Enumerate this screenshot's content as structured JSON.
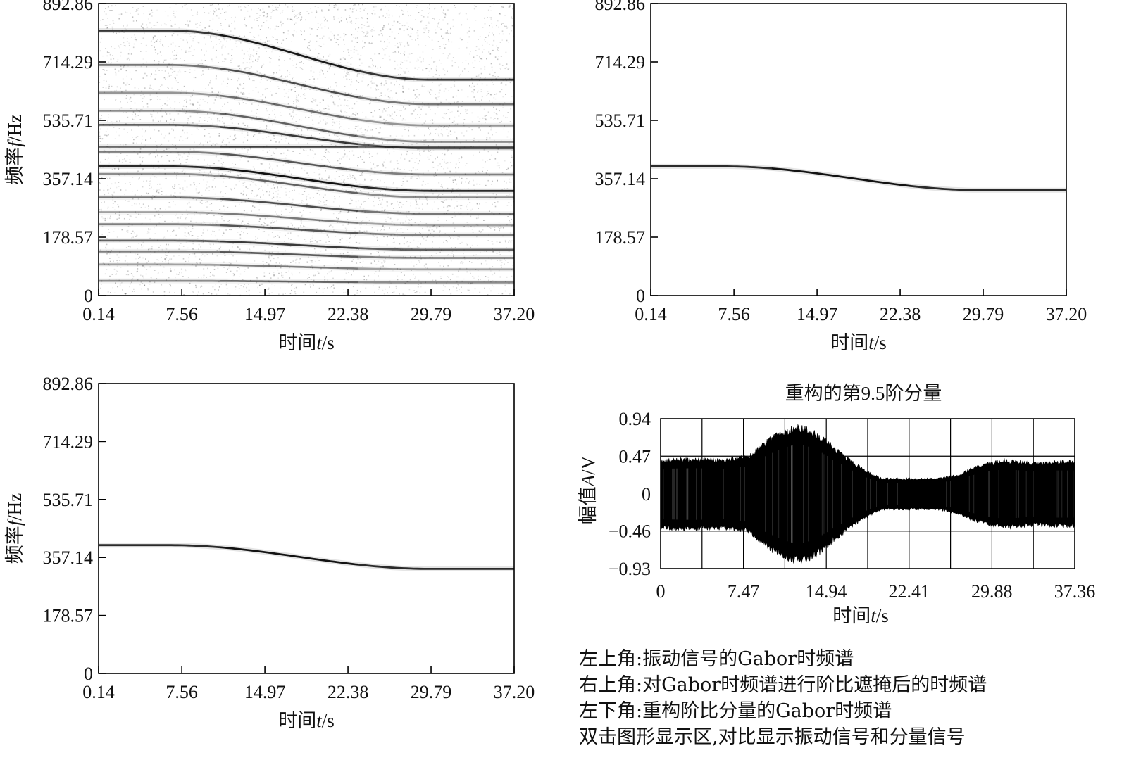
{
  "chart_data": [
    {
      "type": "heatmap",
      "xlabel": "时间t/s",
      "ylabel": "频率f/Hz",
      "xlim": [
        0.14,
        37.2
      ],
      "ylim": [
        0,
        892.86
      ],
      "xticks": [
        "0.14",
        "7.56",
        "14.97",
        "22.38",
        "29.79",
        "37.20"
      ],
      "yticks": [
        "0",
        "178.57",
        "357.14",
        "535.71",
        "714.29",
        "892.86"
      ],
      "grid": false,
      "colormap": "grayscale",
      "traces": [
        {
          "f_start": 810,
          "f_end": 660,
          "intensity": 0.9
        },
        {
          "f_start": 705,
          "f_end": 585,
          "intensity": 0.6
        },
        {
          "f_start": 620,
          "f_end": 520,
          "intensity": 0.45
        },
        {
          "f_start": 565,
          "f_end": 470,
          "intensity": 0.5
        },
        {
          "f_start": 522,
          "f_end": 450,
          "intensity": 0.7
        },
        {
          "f_start": 455,
          "f_end": 455,
          "intensity": 0.65
        },
        {
          "f_start": 440,
          "f_end": 370,
          "intensity": 0.55
        },
        {
          "f_start": 395,
          "f_end": 320,
          "intensity": 0.95
        },
        {
          "f_start": 372,
          "f_end": 300,
          "intensity": 0.5
        },
        {
          "f_start": 300,
          "f_end": 250,
          "intensity": 0.6
        },
        {
          "f_start": 255,
          "f_end": 215,
          "intensity": 0.4
        },
        {
          "f_start": 218,
          "f_end": 185,
          "intensity": 0.55
        },
        {
          "f_start": 168,
          "f_end": 140,
          "intensity": 0.7
        },
        {
          "f_start": 135,
          "f_end": 115,
          "intensity": 0.55
        },
        {
          "f_start": 95,
          "f_end": 80,
          "intensity": 0.4
        },
        {
          "f_start": 45,
          "f_end": 40,
          "intensity": 0.5
        }
      ]
    },
    {
      "type": "heatmap",
      "xlabel": "时间t/s",
      "ylabel": "频率f/Hz",
      "xlim": [
        0.14,
        37.2
      ],
      "ylim": [
        0,
        892.86
      ],
      "xticks": [
        "0.14",
        "7.56",
        "14.97",
        "22.38",
        "29.79",
        "37.20"
      ],
      "yticks": [
        "0",
        "178.57",
        "357.14",
        "535.71",
        "714.29",
        "892.86"
      ],
      "grid": false,
      "colormap": "grayscale",
      "traces": [
        {
          "f_start": 395,
          "f_end": 322,
          "intensity": 0.95
        }
      ]
    },
    {
      "type": "heatmap",
      "xlabel": "时间t/s",
      "ylabel": "频率f/Hz",
      "xlim": [
        0.14,
        37.2
      ],
      "ylim": [
        0,
        892.86
      ],
      "xticks": [
        "0.14",
        "7.56",
        "14.97",
        "22.38",
        "29.79",
        "37.20"
      ],
      "yticks": [
        "0",
        "178.57",
        "357.14",
        "535.71",
        "714.29",
        "892.86"
      ],
      "grid": false,
      "colormap": "grayscale",
      "traces": [
        {
          "f_start": 395,
          "f_end": 322,
          "intensity": 0.95
        }
      ]
    },
    {
      "type": "line",
      "title": "重构的第9.5阶分量",
      "xlabel": "时间t/s",
      "ylabel": "幅值A/V",
      "xlim": [
        0,
        37.36
      ],
      "ylim": [
        -0.93,
        0.94
      ],
      "xticks": [
        "0",
        "7.47",
        "14.94",
        "22.41",
        "29.88",
        "37.36"
      ],
      "yticks": [
        "0.94",
        "0.47",
        "0",
        "−0.46",
        "−0.93"
      ],
      "grid": true,
      "series": [
        {
          "envelope_t": [
            0,
            3,
            6,
            8,
            9.5,
            11,
            12.5,
            14,
            15.5,
            17,
            18.5,
            20,
            21,
            23,
            25,
            27,
            28,
            29.5,
            31,
            32.5,
            34,
            35.5,
            37.36
          ],
          "envelope_a": [
            0.45,
            0.46,
            0.45,
            0.5,
            0.68,
            0.82,
            0.9,
            0.8,
            0.62,
            0.45,
            0.3,
            0.2,
            0.2,
            0.2,
            0.2,
            0.26,
            0.33,
            0.4,
            0.44,
            0.42,
            0.4,
            0.42,
            0.42
          ]
        }
      ]
    }
  ],
  "notes": [
    "左上角:振动信号的Gabor时频谱",
    "右上角:对Gabor时频谱进行阶比遮掩后的时频谱",
    "左下角:重构阶比分量的Gabor时频谱",
    "双击图形显示区,对比显示振动信号和分量信号"
  ]
}
